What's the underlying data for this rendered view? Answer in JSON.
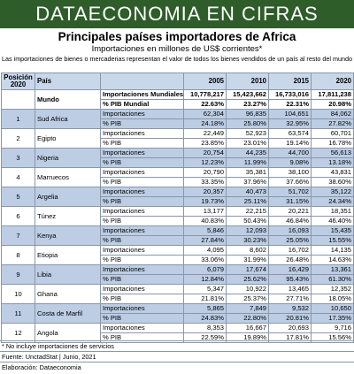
{
  "banner": "DATAECONOMIA EN CIFRAS",
  "title": "Principales países importadores de Africa",
  "subtitle": "Importaciones en millones de US$ corrientes*",
  "description": "Las importaciones de bienes o mercaderias representan el valor de todos los bienes vendidos de un país al resto del mundo",
  "table": {
    "headers": {
      "position": "Posición 2020",
      "country": "País",
      "metric": "",
      "years": [
        "2005",
        "2010",
        "2015",
        "2020"
      ]
    },
    "rows": [
      {
        "pos": "",
        "country": "Mundo",
        "metric": "Importaciones Mundiales",
        "values": [
          "10,778,217",
          "15,423,662",
          "16,733,016",
          "17,811,238"
        ]
      },
      {
        "pos": "",
        "country": "",
        "metric": "% PIB Mundial",
        "values": [
          "22.63%",
          "23.27%",
          "22.31%",
          "20.98%"
        ]
      },
      {
        "pos": "1",
        "country": "Sud Africa",
        "metric": "Importaciones",
        "values": [
          "62,304",
          "96,835",
          "104,651",
          "84,062"
        ]
      },
      {
        "pos": "",
        "country": "",
        "metric": "% PIB",
        "values": [
          "24.18%",
          "25.80%",
          "32.95%",
          "27.82%"
        ]
      },
      {
        "pos": "2",
        "country": "Egipto",
        "metric": "Importaciones",
        "values": [
          "22,449",
          "52,923",
          "63,574",
          "60,701"
        ]
      },
      {
        "pos": "",
        "country": "",
        "metric": "% PIB",
        "values": [
          "23.85%",
          "23.01%",
          "19.14%",
          "16.78%"
        ]
      },
      {
        "pos": "3",
        "country": "Nigeria",
        "metric": "Importaciones",
        "values": [
          "20,754",
          "44,235",
          "44,700",
          "56,613"
        ]
      },
      {
        "pos": "",
        "country": "",
        "metric": "% PIB",
        "values": [
          "12.23%",
          "11.99%",
          "9.08%",
          "13.18%"
        ]
      },
      {
        "pos": "4",
        "country": "Marruecos",
        "metric": "Importaciones",
        "values": [
          "20,790",
          "35,381",
          "38,100",
          "43,831"
        ]
      },
      {
        "pos": "",
        "country": "",
        "metric": "% PIB",
        "values": [
          "33.35%",
          "37.96%",
          "37.66%",
          "38.60%"
        ]
      },
      {
        "pos": "5",
        "country": "Argelia",
        "metric": "Importaciones",
        "values": [
          "20,357",
          "40,473",
          "51,702",
          "35,122"
        ]
      },
      {
        "pos": "",
        "country": "",
        "metric": "% PIB",
        "values": [
          "19.73%",
          "25.11%",
          "31.15%",
          "24.34%"
        ]
      },
      {
        "pos": "6",
        "country": "Túnez",
        "metric": "Importaciones",
        "values": [
          "13,177",
          "22,215",
          "20,221",
          "18,351"
        ]
      },
      {
        "pos": "",
        "country": "",
        "metric": "% PIB",
        "values": [
          "40.83%",
          "50.43%",
          "46.84%",
          "46.40%"
        ]
      },
      {
        "pos": "7",
        "country": "Kenya",
        "metric": "Importaciones",
        "values": [
          "5,846",
          "12,093",
          "16,093",
          "15,435"
        ]
      },
      {
        "pos": "",
        "country": "",
        "metric": "% PIB",
        "values": [
          "27.84%",
          "30.23%",
          "25.05%",
          "15.55%"
        ]
      },
      {
        "pos": "8",
        "country": "Etiopia",
        "metric": "Importaciones",
        "values": [
          "4,095",
          "8,602",
          "16,702",
          "14,135"
        ]
      },
      {
        "pos": "",
        "country": "",
        "metric": "% PIB",
        "values": [
          "33.06%",
          "31.99%",
          "26.48%",
          "14.63%"
        ]
      },
      {
        "pos": "9",
        "country": "Libia",
        "metric": "Importaciones",
        "values": [
          "6,079",
          "17,674",
          "16,429",
          "13,361"
        ]
      },
      {
        "pos": "",
        "country": "",
        "metric": "% PIB",
        "values": [
          "12.84%",
          "25.62%",
          "95.43%",
          "61.30%"
        ]
      },
      {
        "pos": "10",
        "country": "Ghana",
        "metric": "Importaciones",
        "values": [
          "5,347",
          "10,922",
          "13,465",
          "12,352"
        ]
      },
      {
        "pos": "",
        "country": "",
        "metric": "% PIB",
        "values": [
          "21.81%",
          "25.37%",
          "27.71%",
          "18.05%"
        ]
      },
      {
        "pos": "11",
        "country": "Costa de Marfil",
        "metric": "Importaciones",
        "values": [
          "5,865",
          "7,849",
          "9,532",
          "10,650"
        ]
      },
      {
        "pos": "",
        "country": "",
        "metric": "% PIB",
        "values": [
          "24.83%",
          "22.80%",
          "20.81%",
          "17.35%"
        ]
      },
      {
        "pos": "12",
        "country": "Angola",
        "metric": "Importaciones",
        "values": [
          "8,353",
          "16,667",
          "20,693",
          "9,716"
        ]
      },
      {
        "pos": "",
        "country": "",
        "metric": "% PIB",
        "values": [
          "22.59%",
          "19.89%",
          "17.81%",
          "15.56%"
        ]
      }
    ]
  },
  "footnote": "* No incluye importaciones de servicios",
  "source": "Fuente: UnctadStat  |  Junio, 2021",
  "credit": "Elaboración: Dataeconomia",
  "colors": {
    "banner": "#2e5d2a",
    "header": "#c9d7ea",
    "band": "#bccde4"
  }
}
